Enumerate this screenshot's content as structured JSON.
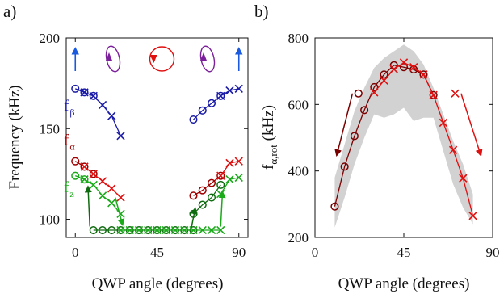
{
  "panel_a": {
    "letter": "a)",
    "ylabel": "Frequency (kHz)",
    "xlabel": "QWP angle (degrees)"
  },
  "panel_b": {
    "letter": "b)",
    "ylabel": "fα,rot (kHz)",
    "xlabel": "QWP angle (degrees)"
  },
  "colors": {
    "f_beta": "#1a1aa8",
    "f_alpha": "#a00000",
    "f_z": "#1aaa1a",
    "dark_green": "#0f6b0f",
    "purple": "#7b1f9a",
    "red": "#e01010",
    "blue": "#1a5ae0",
    "band": "#d2d2d2",
    "dark_red": "#7a0000"
  },
  "chart_data": [
    {
      "type": "line",
      "xlim": [
        -5,
        95
      ],
      "ylim": [
        90,
        200
      ],
      "xticks": [
        0,
        45,
        90
      ],
      "yticks": [
        100,
        150,
        200
      ],
      "xlabel": "QWP angle (degrees)",
      "ylabel": "Frequency (kHz)",
      "series_labels": [
        {
          "id": "fbeta",
          "text": "f",
          "sub": "β",
          "color": "#1a1aa8",
          "at": [
            -5,
            160
          ]
        },
        {
          "id": "falpha",
          "text": "f",
          "sub": "α",
          "color": "#a00000",
          "at": [
            -5,
            141
          ]
        },
        {
          "id": "fz",
          "text": "f",
          "sub": "z",
          "color": "#1aaa1a",
          "at": [
            -5,
            115
          ]
        }
      ],
      "series": [
        {
          "id": "fbeta-o-left",
          "color": "#1a1aa8",
          "marker": "o",
          "x": [
            0,
            5,
            10
          ],
          "y": [
            172,
            170,
            168
          ]
        },
        {
          "id": "fbeta-x-left",
          "color": "#1a1aa8",
          "marker": "x",
          "x": [
            5,
            10,
            15,
            20,
            25
          ],
          "y": [
            170,
            168,
            163,
            157,
            146
          ]
        },
        {
          "id": "fbeta-o-right",
          "color": "#1a1aa8",
          "marker": "o",
          "x": [
            65,
            70,
            75,
            80
          ],
          "y": [
            155,
            160,
            164,
            168
          ]
        },
        {
          "id": "fbeta-x-right",
          "color": "#1a1aa8",
          "marker": "x",
          "x": [
            80,
            85,
            90
          ],
          "y": [
            168,
            171,
            172
          ]
        },
        {
          "id": "falpha-o-left",
          "color": "#a00000",
          "marker": "o",
          "x": [
            0,
            5,
            10
          ],
          "y": [
            132,
            129,
            125
          ]
        },
        {
          "id": "falpha-x-left",
          "color": "#e01010",
          "marker": "x",
          "x": [
            5,
            10,
            15,
            20,
            25
          ],
          "y": [
            129,
            125,
            121,
            117,
            112
          ]
        },
        {
          "id": "falpha-o-right",
          "color": "#a00000",
          "marker": "o",
          "x": [
            65,
            70,
            75,
            80
          ],
          "y": [
            113,
            116,
            120,
            124
          ]
        },
        {
          "id": "falpha-x-right",
          "color": "#e01010",
          "marker": "x",
          "x": [
            80,
            85,
            90
          ],
          "y": [
            124,
            131,
            132
          ]
        },
        {
          "id": "fz-o-left",
          "color": "#1aaa1a",
          "marker": "o",
          "x": [
            0,
            5
          ],
          "y": [
            124,
            122
          ]
        },
        {
          "id": "fz-x-left",
          "color": "#1aaa1a",
          "marker": "x",
          "x": [
            5,
            10,
            15,
            20,
            25
          ],
          "y": [
            122,
            119,
            113,
            109,
            103
          ]
        },
        {
          "id": "fz-o-bottom",
          "color": "#0f6b0f",
          "marker": "o",
          "x": [
            10,
            15,
            20,
            25,
            30,
            35,
            40,
            45,
            50,
            55,
            60,
            65
          ],
          "y": [
            94,
            94,
            94,
            94,
            94,
            94,
            94,
            94,
            94,
            94,
            94,
            94
          ]
        },
        {
          "id": "fz-x-bottom",
          "color": "#1aaa1a",
          "marker": "x",
          "x": [
            25,
            30,
            35,
            40,
            45,
            50,
            55,
            60,
            65,
            70,
            75,
            80
          ],
          "y": [
            94,
            94,
            94,
            94,
            94,
            94,
            94,
            94,
            94,
            94,
            94,
            94
          ]
        },
        {
          "id": "fz-o-right",
          "color": "#0f6b0f",
          "marker": "o",
          "x": [
            65,
            70,
            75,
            80
          ],
          "y": [
            103,
            108,
            112,
            119
          ]
        },
        {
          "id": "fz-x-right",
          "color": "#1aaa1a",
          "marker": "x",
          "x": [
            80,
            85,
            90
          ],
          "y": [
            114,
            122,
            123
          ]
        }
      ],
      "arrows": [
        {
          "id": "fz-left-up-arrow",
          "color": "#0f6b0f",
          "from": [
            8,
            96
          ],
          "to": [
            7,
            118
          ]
        },
        {
          "id": "fz-left-down-arrow",
          "color": "#1aaa1a",
          "from": [
            22,
            112
          ],
          "to": [
            26,
            97
          ]
        },
        {
          "id": "fz-right-up-arrow",
          "color": "#0f6b0f",
          "from": [
            64,
            96
          ],
          "to": [
            66,
            106
          ]
        },
        {
          "id": "fz-right-up2-arrow",
          "color": "#1aaa1a",
          "from": [
            80,
            96
          ],
          "to": [
            81,
            115
          ]
        }
      ],
      "polarization_icons": [
        {
          "id": "linear-up-icon-left",
          "kind": "linear",
          "color": "#1a5ae0",
          "x": 0
        },
        {
          "id": "elliptical-ccw-icon-left",
          "kind": "ellipse",
          "color": "#7b1f9a",
          "x": 19
        },
        {
          "id": "circular-icon-center",
          "kind": "circle",
          "color": "#e01010",
          "x": 45
        },
        {
          "id": "elliptical-icon-right",
          "kind": "ellipse",
          "color": "#7b1f9a",
          "x": 71
        },
        {
          "id": "linear-up-icon-right",
          "kind": "linear",
          "color": "#1a5ae0",
          "x": 90
        }
      ]
    },
    {
      "type": "line",
      "xlim": [
        0,
        90
      ],
      "ylim": [
        200,
        800
      ],
      "xticks": [
        0,
        45,
        90
      ],
      "yticks": [
        200,
        400,
        600,
        800
      ],
      "xlabel": "QWP angle (degrees)",
      "ylabel": "fα,rot (kHz)",
      "band": {
        "x": [
          10,
          15,
          20,
          25,
          30,
          35,
          40,
          45,
          50,
          55,
          60,
          65,
          70,
          75,
          80
        ],
        "low": [
          230,
          320,
          420,
          500,
          570,
          560,
          570,
          590,
          550,
          560,
          560,
          460,
          360,
          290,
          240
        ],
        "high": [
          380,
          480,
          580,
          650,
          710,
          740,
          760,
          780,
          760,
          720,
          650,
          570,
          490,
          420,
          330
        ]
      },
      "series": [
        {
          "id": "circles",
          "color": "#7a0000",
          "marker": "o",
          "x": [
            10,
            15,
            20,
            25,
            30,
            35,
            40,
            45,
            50,
            55,
            60
          ],
          "y": [
            293,
            413,
            505,
            583,
            652,
            690,
            718,
            712,
            705,
            690,
            628
          ]
        },
        {
          "id": "crosses",
          "color": "#e01010",
          "marker": "x",
          "x": [
            30,
            35,
            40,
            45,
            50,
            55,
            60,
            65,
            70,
            75,
            80
          ],
          "y": [
            636,
            672,
            706,
            726,
            712,
            690,
            628,
            545,
            463,
            378,
            265
          ]
        }
      ],
      "arrows": [
        {
          "id": "b-left-arrow",
          "color": "#7a0000",
          "from": [
            19,
            633
          ],
          "to": [
            11,
            447
          ]
        },
        {
          "id": "b-right-arrow",
          "color": "#e01010",
          "from": [
            74,
            633
          ],
          "to": [
            84,
            447
          ]
        }
      ],
      "marker_labels": [
        {
          "id": "b-left-marker",
          "marker": "o",
          "color": "#7a0000",
          "x": 22,
          "y": 633
        },
        {
          "id": "b-right-marker",
          "marker": "x",
          "color": "#e01010",
          "x": 71,
          "y": 633
        }
      ]
    }
  ]
}
